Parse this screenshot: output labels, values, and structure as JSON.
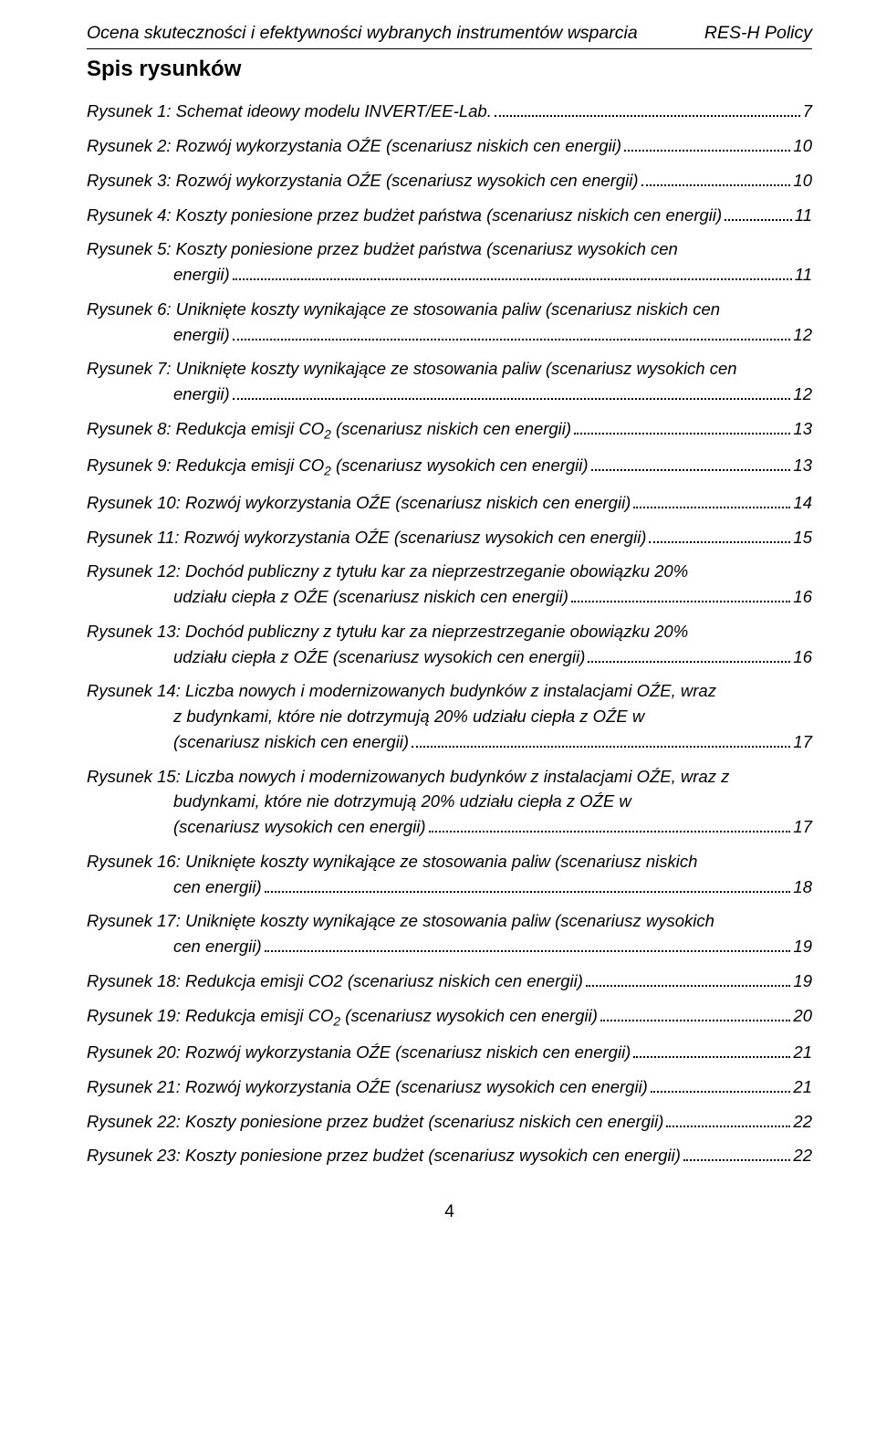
{
  "header": {
    "left": "Ocena skuteczności i efektywności wybranych instrumentów wsparcia",
    "right": "RES-H Policy"
  },
  "sectionTitle": "Spis rysunków",
  "entries": [
    {
      "lines": [
        "Rysunek 1: Schemat ideowy modelu INVERT/EE-Lab."
      ],
      "page": "7"
    },
    {
      "lines": [
        "Rysunek 2:  Rozwój wykorzystania OŹE (scenariusz niskich cen energii)"
      ],
      "page": "10"
    },
    {
      "lines": [
        "Rysunek 3:  Rozwój wykorzystania OŹE (scenariusz wysokich cen energii)"
      ],
      "page": "10"
    },
    {
      "lines": [
        "Rysunek 4: Koszty poniesione przez budżet państwa (scenariusz niskich cen energii)"
      ],
      "page": "11"
    },
    {
      "lines": [
        "Rysunek 5: Koszty poniesione przez budżet państwa (scenariusz wysokich cen",
        "energii)"
      ],
      "page": "11"
    },
    {
      "lines": [
        "Rysunek 6: Uniknięte koszty wynikające ze stosowania  paliw (scenariusz niskich cen",
        "energii)"
      ],
      "page": "12"
    },
    {
      "lines": [
        "Rysunek 7: Uniknięte koszty wynikające ze stosowania  paliw (scenariusz wysokich cen",
        "energii)"
      ],
      "page": "12"
    },
    {
      "lines": [
        "Rysunek 8: Redukcja emisji CO₂ (scenariusz niskich cen energii)"
      ],
      "page": "13",
      "hasCO2": true,
      "co2Index": 0
    },
    {
      "lines": [
        "Rysunek 9: Redukcja emisji CO₂ (scenariusz wysokich cen energii)"
      ],
      "page": "13",
      "hasCO2": true,
      "co2Index": 0
    },
    {
      "lines": [
        "Rysunek 10: Rozwój wykorzystania OŹE (scenariusz niskich cen energii)"
      ],
      "page": "14"
    },
    {
      "lines": [
        "Rysunek 11: Rozwój wykorzystania OŹE (scenariusz wysokich cen energii)"
      ],
      "page": "15"
    },
    {
      "lines": [
        "Rysunek 12: Dochód publiczny z tytułu kar za nieprzestrzeganie obowiązku 20%",
        "udziału ciepła z OŹE (scenariusz niskich cen energii)"
      ],
      "page": "16"
    },
    {
      "lines": [
        "Rysunek 13: Dochód publiczny z tytułu kar za nieprzestrzeganie obowiązku 20%",
        "udziału ciepła z OŹE (scenariusz wysokich cen  energii)"
      ],
      "page": "16"
    },
    {
      "lines": [
        "Rysunek 14: Liczba nowych i modernizowanych budynków z instalacjami OŹE, wraz",
        "z budynkami, które nie dotrzymują  20% udziału ciepła z OŹE w",
        "(scenariusz niskich cen energii)"
      ],
      "page": "17"
    },
    {
      "lines": [
        "Rysunek 15: Liczba nowych i modernizowanych budynków z instalacjami OŹE, wraz z",
        "budynkami, które nie dotrzymują  20% udziału ciepła z OŹE w",
        "(scenariusz wysokich cen energii)"
      ],
      "page": "17"
    },
    {
      "lines": [
        "Rysunek 16: Uniknięte koszty wynikające ze stosowania  paliw (scenariusz niskich",
        "cen energii)"
      ],
      "page": "18"
    },
    {
      "lines": [
        "Rysunek 17: Uniknięte koszty wynikające ze stosowania  paliw (scenariusz wysokich",
        "cen energii)"
      ],
      "page": "19"
    },
    {
      "lines": [
        "Rysunek 18: Redukcja emisji CO2 (scenariusz niskich cen energii)"
      ],
      "page": "19"
    },
    {
      "lines": [
        "Rysunek 19: Redukcja emisji CO₂ (scenariusz wysokich cen energii)"
      ],
      "page": "20",
      "hasCO2": true,
      "co2Index": 0
    },
    {
      "lines": [
        "Rysunek 20: Rozwój wykorzystania OŹE (scenariusz niskich cen energii)"
      ],
      "page": "21"
    },
    {
      "lines": [
        "Rysunek 21: Rozwój wykorzystania OŹE (scenariusz wysokich  cen energii)"
      ],
      "page": "21"
    },
    {
      "lines": [
        "Rysunek 22: Koszty poniesione przez budżet (scenariusz niskich cen energii)"
      ],
      "page": "22"
    },
    {
      "lines": [
        "Rysunek 23: Koszty poniesione przez budżet (scenariusz wysokich  cen energii)"
      ],
      "page": "22"
    }
  ],
  "pageNumber": "4"
}
